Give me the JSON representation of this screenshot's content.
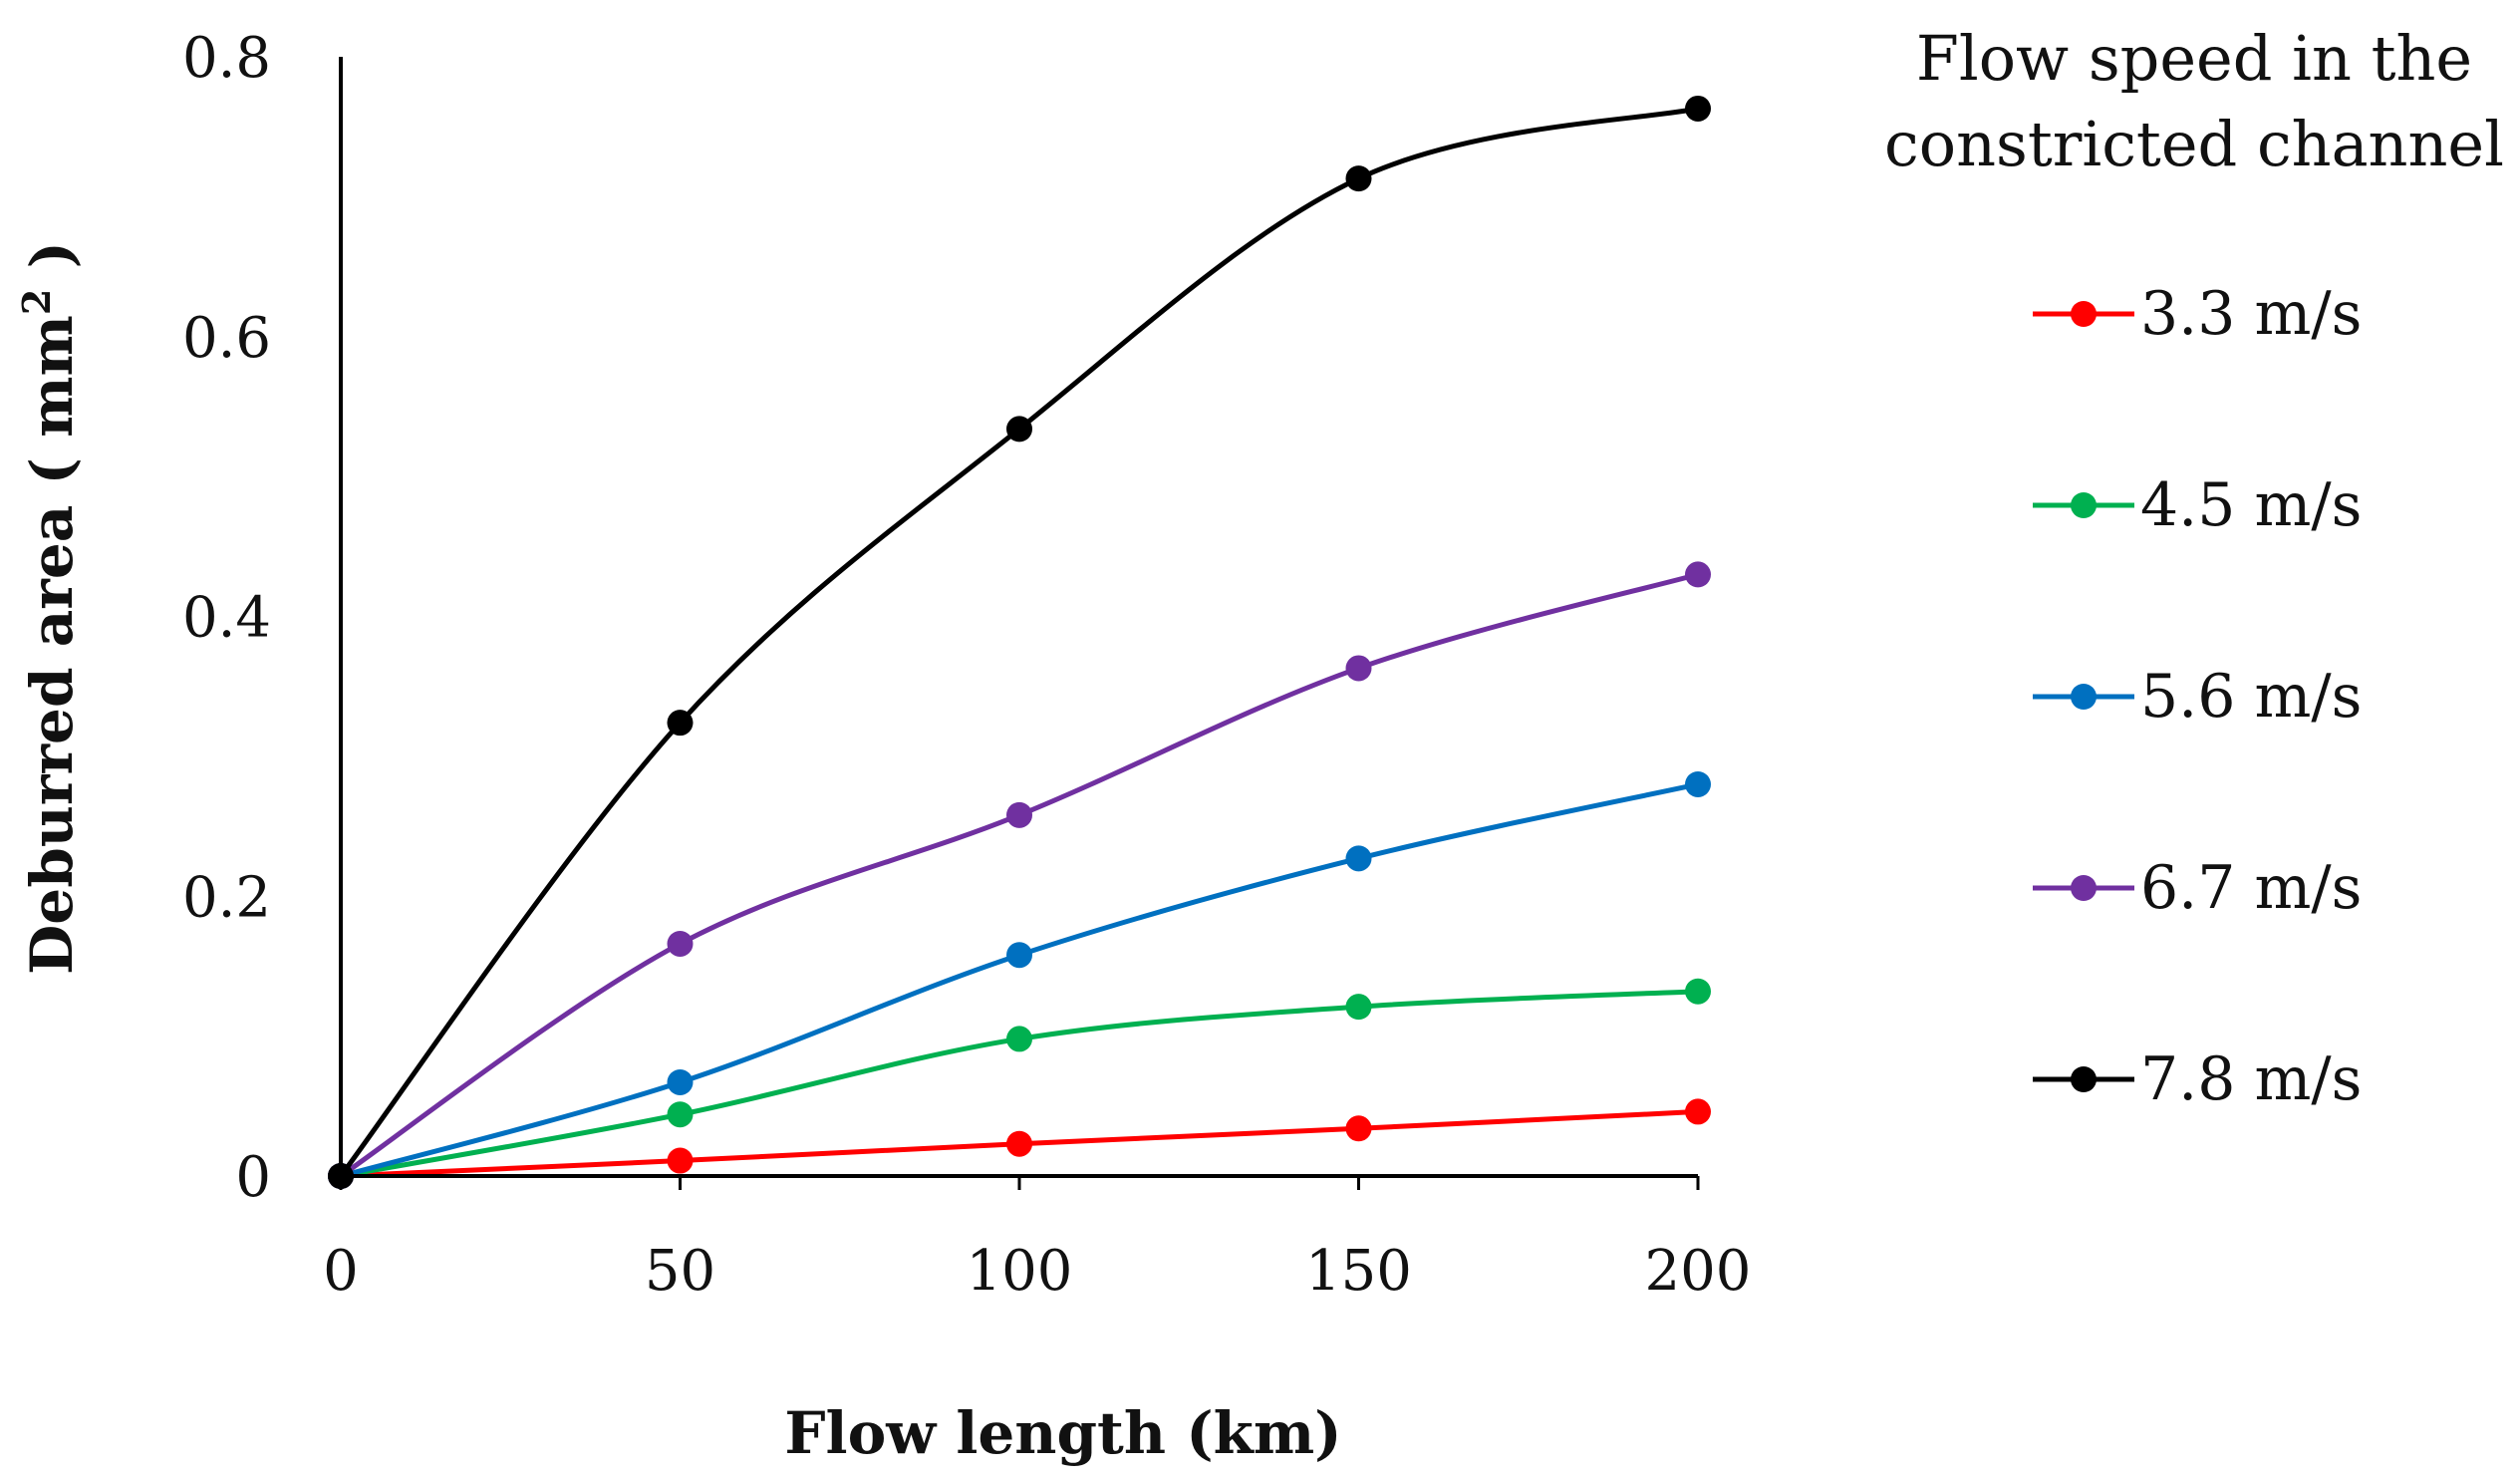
{
  "chart_data": {
    "type": "line",
    "title": "",
    "xlabel": "Flow length (km)",
    "ylabel": "Deburred area ( mm",
    "ylabel_superscript": "2",
    "ylabel_suffix": " )",
    "x": [
      0,
      50,
      100,
      150,
      200
    ],
    "xlim": [
      0,
      200
    ],
    "ylim": [
      0,
      0.8
    ],
    "xticks": [
      0,
      50,
      100,
      150,
      200
    ],
    "yticks": [
      0,
      0.2,
      0.4,
      0.6,
      0.8
    ],
    "xtick_labels": [
      "0",
      "50",
      "100",
      "150",
      "200"
    ],
    "ytick_labels": [
      "0",
      "0.2",
      "0.4",
      "0.6",
      "0.8"
    ],
    "grid": false,
    "smooth_lines": true,
    "legend_title_lines": [
      "Flow speed in the",
      "constricted channel"
    ],
    "legend_position": "right",
    "series": [
      {
        "name": "3.3 m/s",
        "color": "#ff0000",
        "values": [
          0,
          0.011,
          0.023,
          0.034,
          0.046
        ]
      },
      {
        "name": "4.5 m/s",
        "color": "#00b050",
        "values": [
          0,
          0.044,
          0.098,
          0.121,
          0.132
        ]
      },
      {
        "name": "5.6 m/s",
        "color": "#0070c0",
        "values": [
          0,
          0.067,
          0.158,
          0.227,
          0.28
        ]
      },
      {
        "name": "6.7 m/s",
        "color": "#7030a0",
        "values": [
          0,
          0.166,
          0.258,
          0.363,
          0.43
        ]
      },
      {
        "name": "7.8 m/s",
        "color": "#000000",
        "values": [
          0,
          0.324,
          0.534,
          0.713,
          0.763
        ]
      }
    ]
  }
}
